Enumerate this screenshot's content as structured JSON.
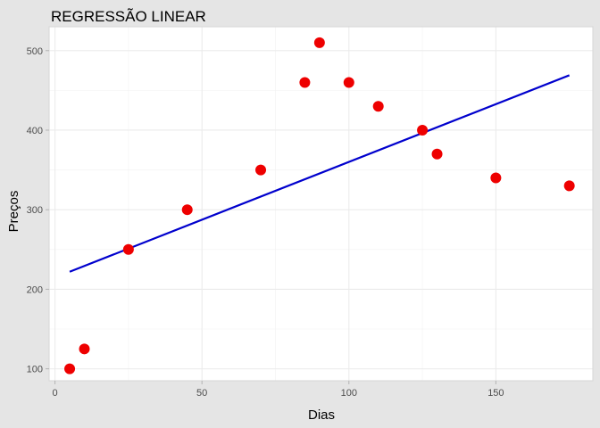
{
  "chart_data": {
    "type": "scatter",
    "title": "REGRESSÃO LINEAR",
    "xlabel": "Dias",
    "ylabel": "Preços",
    "xlim": [
      -2,
      183
    ],
    "ylim": [
      85,
      530
    ],
    "x_ticks": [
      0,
      50,
      100,
      150
    ],
    "y_ticks": [
      100,
      200,
      300,
      400,
      500
    ],
    "grid": true,
    "legend": "none",
    "points": {
      "x": [
        5,
        10,
        25,
        45,
        70,
        85,
        90,
        100,
        110,
        125,
        130,
        150,
        175
      ],
      "y": [
        100,
        125,
        250,
        300,
        350,
        460,
        510,
        460,
        430,
        400,
        370,
        340,
        330
      ]
    },
    "regression_line": {
      "x": [
        5,
        175
      ],
      "y": [
        222,
        469
      ]
    },
    "colors": {
      "points": "#ee0000",
      "line": "#0000cd",
      "panel_bg": "#ffffff",
      "outer_bg": "#e5e5e5",
      "grid": "#ebebeb"
    }
  }
}
